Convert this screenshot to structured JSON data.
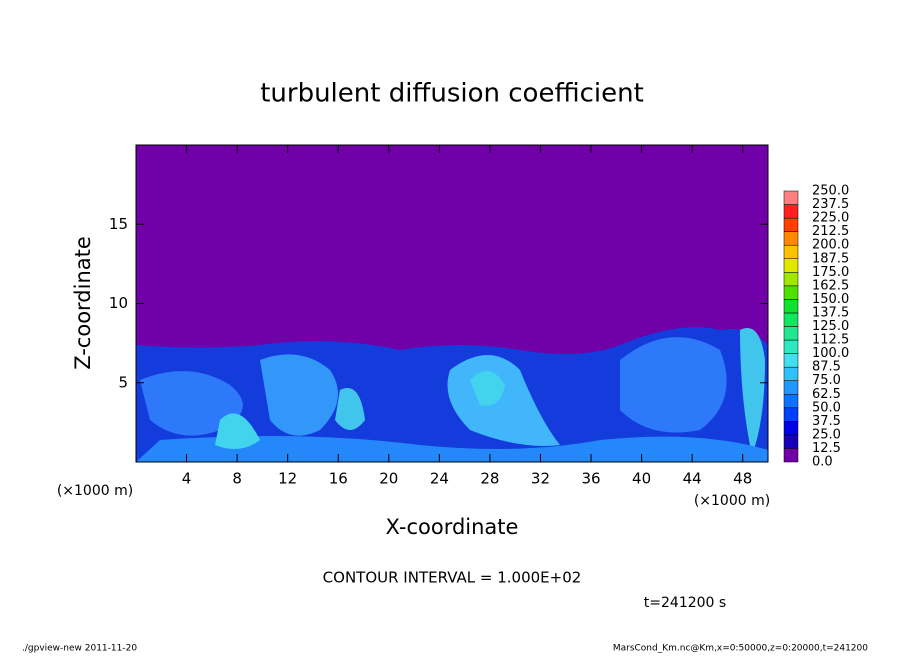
{
  "chart_data": {
    "type": "heatmap",
    "title": "turbulent diffusion coefficient",
    "x_label": "X-coordinate",
    "y_label": "Z-coordinate",
    "x_unit": "(×1000 m)",
    "y_unit": "(×1000 m)",
    "xlim": [
      0,
      50
    ],
    "xticks": [
      4,
      8,
      12,
      16,
      20,
      24,
      28,
      32,
      36,
      40,
      44,
      48
    ],
    "ylim": [
      0,
      20
    ],
    "yticks": [
      5,
      10,
      15
    ],
    "background_color": "#7000a8",
    "colorbar": {
      "ticks": [
        {
          "value": 0,
          "label": "0.0"
        },
        12.5,
        {
          "value": 25,
          "label": "25.0"
        },
        37.5,
        {
          "value": 50,
          "label": "50.0"
        },
        62.5,
        {
          "value": 75,
          "label": "75.0"
        },
        87.5,
        {
          "value": 100,
          "label": "100.0"
        },
        112.5,
        {
          "value": 125,
          "label": "125.0"
        },
        137.5,
        {
          "value": 150,
          "label": "150.0"
        },
        162.5,
        {
          "value": 175,
          "label": "175.0"
        },
        187.5,
        {
          "value": 200,
          "label": "200.0"
        },
        212.5,
        {
          "value": 225,
          "label": "225.0"
        },
        237.5,
        {
          "value": 250,
          "label": "250.0"
        }
      ],
      "colors": [
        "#7000a8",
        "#1800b8",
        "#0000e8",
        "#0040ff",
        "#1070ff",
        "#2098ff",
        "#30c0ff",
        "#40e0f0",
        "#30e8c0",
        "#20e890",
        "#10e860",
        "#10e030",
        "#50e000",
        "#a0e800",
        "#e0e800",
        "#ffc000",
        "#ff8800",
        "#ff4000",
        "#ff2020",
        "#ff8080"
      ]
    },
    "annotation": "CONTOUR INTERVAL = 1.000E+02",
    "time_label": "t=241200 s",
    "footer_left": "./gpview-new  2011-11-20",
    "footer_right": "MarsCond_Km.nc@Km,x=0:50000,z=0:20000,t=241200"
  }
}
